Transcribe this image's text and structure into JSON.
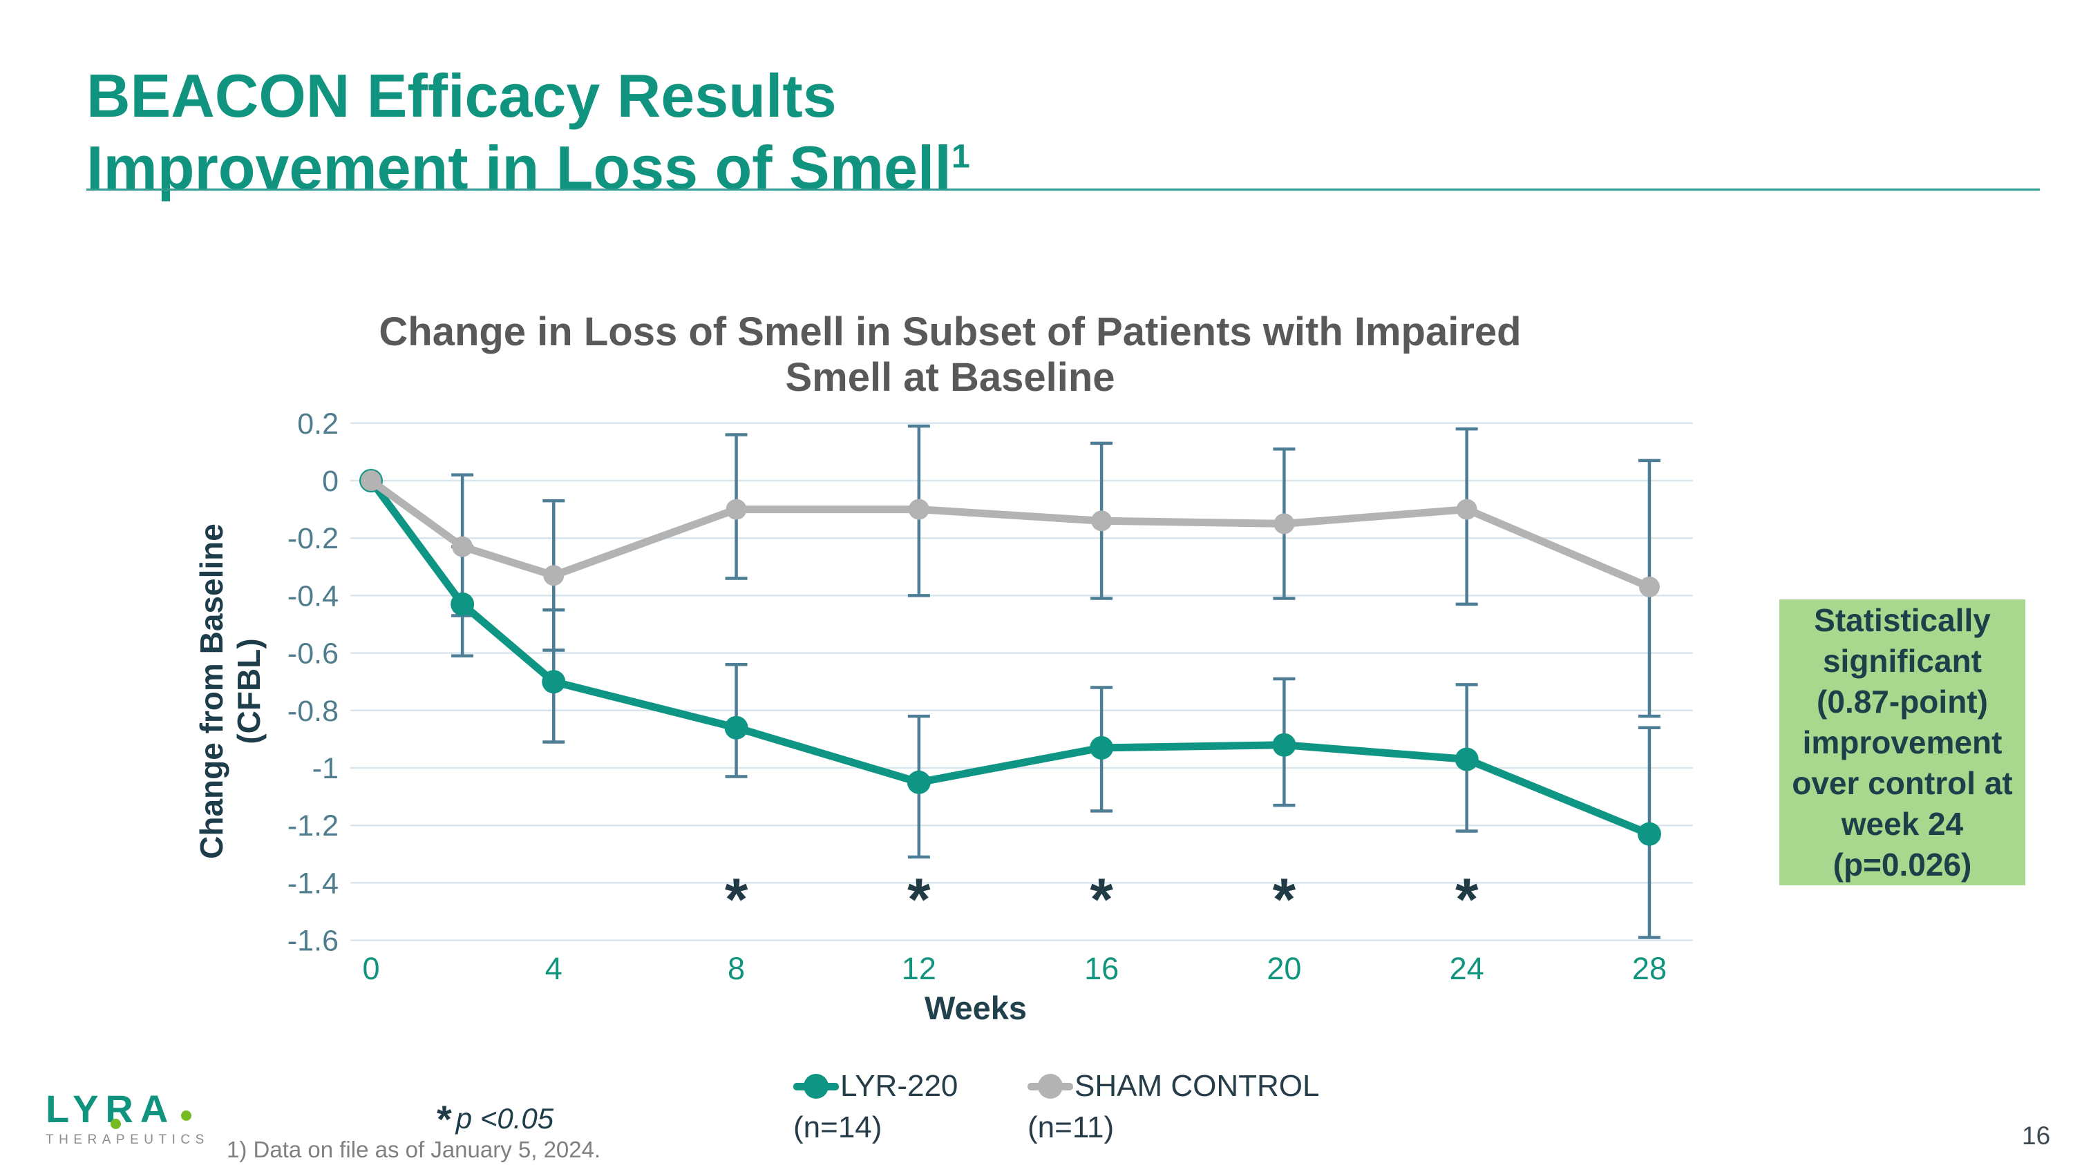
{
  "slide": {
    "title_lines": [
      "BEACON Efficacy Results",
      "Improvement in Loss of Smell"
    ],
    "title_superscript": "1",
    "footnote": "1) Data on file as of January 5, 2024.",
    "page_number": "16",
    "significance_note": {
      "marker": "*",
      "text": "p <0.05"
    },
    "logo": {
      "wordmark": "LYRA",
      "subtext": "THERAPEUTICS"
    }
  },
  "callout": {
    "lines": [
      "Statistically",
      "significant",
      "(0.87-point)",
      "improvement",
      "over control at",
      "week 24",
      "(p=0.026)"
    ],
    "bg": "#a9d78e",
    "text_color": "#1c4049"
  },
  "legend": {
    "items": [
      {
        "label": "LYR-220",
        "sub": "(n=14)",
        "color": "#0f9583"
      },
      {
        "label": "SHAM CONTROL",
        "sub": "(n=11)",
        "color": "#b3b3b3"
      }
    ]
  },
  "chart_data": {
    "type": "line",
    "title_lines": [
      "Change in Loss of Smell in Subset of Patients with Impaired",
      "Smell at Baseline"
    ],
    "title": "Change in Loss of Smell in Subset of Patients with Impaired Smell at Baseline",
    "xlabel": "Weeks",
    "ylabel": "Change from Baseline (CFBL)",
    "xlim": [
      0,
      28
    ],
    "ylim": [
      -1.6,
      0.2
    ],
    "grid": true,
    "x_ticks": [
      0,
      4,
      8,
      12,
      16,
      20,
      24,
      28
    ],
    "y_ticks": [
      0.2,
      0,
      -0.2,
      -0.4,
      -0.6,
      -0.8,
      -1,
      -1.2,
      -1.4,
      -1.6
    ],
    "y_tick_labels": [
      "0.2",
      "0",
      "-0.2",
      "-0.4",
      "-0.6",
      "-0.8",
      "-1",
      "-1.2",
      "-1.4",
      "-1.6"
    ],
    "legend_position": "bottom",
    "significance_marker": "*",
    "significance_weeks": [
      8,
      12,
      16,
      20,
      24
    ],
    "error_bar_color": "#4e7e96",
    "series": [
      {
        "name": "LYR-220",
        "n_label": "(n=14)",
        "color": "#0f9583",
        "x": [
          0,
          2,
          4,
          8,
          12,
          16,
          20,
          24,
          28
        ],
        "y": [
          0,
          -0.43,
          -0.7,
          -0.86,
          -1.05,
          -0.93,
          -0.92,
          -0.97,
          -1.23
        ],
        "err_high": [
          null,
          -0.23,
          -0.45,
          -0.64,
          -0.82,
          -0.72,
          -0.69,
          -0.71,
          -0.86
        ],
        "err_low": [
          null,
          -0.61,
          -0.91,
          -1.03,
          -1.31,
          -1.15,
          -1.13,
          -1.22,
          -1.59
        ]
      },
      {
        "name": "SHAM CONTROL",
        "n_label": "(n=11)",
        "color": "#b3b3b3",
        "x": [
          0,
          2,
          4,
          8,
          12,
          16,
          20,
          24,
          28
        ],
        "y": [
          0,
          -0.23,
          -0.33,
          -0.1,
          -0.1,
          -0.14,
          -0.15,
          -0.1,
          -0.37
        ],
        "err_high": [
          null,
          0.02,
          -0.07,
          0.16,
          0.19,
          0.13,
          0.11,
          0.18,
          0.07
        ],
        "err_low": [
          null,
          -0.47,
          -0.59,
          -0.34,
          -0.4,
          -0.41,
          -0.41,
          -0.43,
          -0.82
        ]
      }
    ]
  },
  "colors": {
    "title_teal": "#10947f",
    "rule_teal": "#2e9c90",
    "chart_title": "#58595b",
    "axis_label": "#1e3d4a",
    "weeks_label": "#21414d",
    "y_tick": "#4f7d8e",
    "x_tick": "#11947d",
    "gridline": "#d9e5ec",
    "asterisk": "#203b46",
    "legend_text": "#263c48",
    "footnote": "#808080",
    "page": "#3d4a52",
    "logo_green": "#76bc21",
    "logo_gray": "#8c8c8c"
  }
}
